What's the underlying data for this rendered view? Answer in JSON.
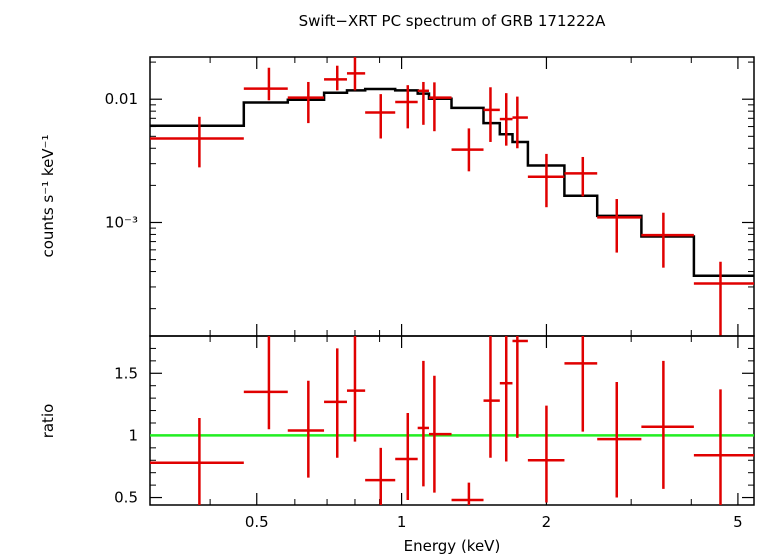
{
  "chart_data": [
    {
      "type": "scatter",
      "panel": "spectrum",
      "title": "Swift−XRT PC spectrum of GRB 171222A",
      "ylabel": "counts s⁻¹ keV⁻¹",
      "yscale": "log",
      "ylim": [
        0.00012,
        0.022
      ],
      "xscale": "log",
      "xlim": [
        0.3,
        5.4
      ],
      "ytick_labels": [
        "0.01",
        "10⁻³"
      ],
      "ytick_values": [
        0.01,
        0.001
      ],
      "data": {
        "x": [
          0.38,
          0.53,
          0.64,
          0.735,
          0.8,
          0.905,
          1.03,
          1.11,
          1.17,
          1.38,
          1.53,
          1.65,
          1.74,
          2.0,
          2.38,
          2.8,
          3.5,
          4.6
        ],
        "xlo": [
          0.3,
          0.47,
          0.58,
          0.69,
          0.77,
          0.84,
          0.97,
          1.08,
          1.14,
          1.27,
          1.48,
          1.6,
          1.7,
          1.83,
          2.18,
          2.55,
          3.15,
          4.05
        ],
        "xhi": [
          0.47,
          0.58,
          0.69,
          0.77,
          0.84,
          0.97,
          1.08,
          1.14,
          1.27,
          1.48,
          1.6,
          1.7,
          1.83,
          2.18,
          2.55,
          3.15,
          4.05,
          5.4
        ],
        "y": [
          0.0048,
          0.0122,
          0.0103,
          0.0145,
          0.0162,
          0.0078,
          0.0095,
          0.0117,
          0.0103,
          0.0039,
          0.0082,
          0.0069,
          0.0071,
          0.00235,
          0.0025,
          0.0011,
          0.00079,
          0.00032
        ],
        "ylo": [
          0.0028,
          0.0098,
          0.0064,
          0.0118,
          0.0118,
          0.0048,
          0.0058,
          0.0062,
          0.0055,
          0.0026,
          0.0045,
          0.0042,
          0.004,
          0.00133,
          0.00163,
          0.00057,
          0.00043,
          0.000118
        ],
        "yhi": [
          0.0072,
          0.018,
          0.0138,
          0.0187,
          0.022,
          0.011,
          0.013,
          0.0138,
          0.0137,
          0.0058,
          0.0125,
          0.0112,
          0.0105,
          0.0036,
          0.0034,
          0.00155,
          0.0012,
          0.00048
        ]
      },
      "model": {
        "edges": [
          0.3,
          0.47,
          0.58,
          0.69,
          0.77,
          0.84,
          0.97,
          1.08,
          1.14,
          1.27,
          1.48,
          1.6,
          1.7,
          1.83,
          2.18,
          2.55,
          3.15,
          4.05,
          5.4
        ],
        "values": [
          0.0061,
          0.0094,
          0.0099,
          0.0113,
          0.0118,
          0.0121,
          0.0118,
          0.0111,
          0.0101,
          0.0085,
          0.0064,
          0.0052,
          0.0045,
          0.0029,
          0.00165,
          0.00113,
          0.00077,
          0.00037
        ]
      },
      "colors": {
        "data": "#e00000",
        "model": "#000000"
      }
    },
    {
      "type": "scatter",
      "panel": "ratio",
      "ylabel": "ratio",
      "xlabel": "Energy (keV)",
      "xscale": "log",
      "xlim": [
        0.3,
        5.4
      ],
      "ylim": [
        0.44,
        1.8
      ],
      "ytick_labels": [
        "0.5",
        "1",
        "1.5"
      ],
      "ytick_values": [
        0.5,
        1,
        1.5
      ],
      "xtick_labels": [
        "0.5",
        "1",
        "2",
        "5"
      ],
      "xtick_values": [
        0.5,
        1,
        2,
        5
      ],
      "reference_line": 1,
      "data": {
        "x": [
          0.38,
          0.53,
          0.64,
          0.735,
          0.8,
          0.905,
          1.03,
          1.11,
          1.17,
          1.38,
          1.53,
          1.65,
          1.74,
          2.0,
          2.38,
          2.8,
          3.5,
          4.6
        ],
        "xlo": [
          0.3,
          0.47,
          0.58,
          0.69,
          0.77,
          0.84,
          0.97,
          1.08,
          1.14,
          1.27,
          1.48,
          1.6,
          1.7,
          1.83,
          2.18,
          2.55,
          3.15,
          4.05
        ],
        "xhi": [
          0.47,
          0.58,
          0.69,
          0.77,
          0.84,
          0.97,
          1.08,
          1.14,
          1.27,
          1.48,
          1.6,
          1.7,
          1.83,
          2.18,
          2.55,
          3.15,
          4.05,
          5.4
        ],
        "y": [
          0.78,
          1.35,
          1.04,
          1.27,
          1.36,
          0.64,
          0.81,
          1.06,
          1.01,
          0.48,
          1.28,
          1.42,
          1.76,
          0.8,
          1.58,
          0.97,
          1.07,
          0.84
        ],
        "ylo": [
          0.44,
          1.05,
          0.66,
          0.82,
          0.95,
          0.44,
          0.48,
          0.59,
          0.54,
          0.44,
          0.82,
          0.79,
          0.98,
          0.46,
          1.03,
          0.5,
          0.57,
          0.44
        ],
        "yhi": [
          1.14,
          1.8,
          1.44,
          1.7,
          1.8,
          0.9,
          1.18,
          1.6,
          1.48,
          0.62,
          1.8,
          1.8,
          1.8,
          1.24,
          1.8,
          1.43,
          1.6,
          1.37
        ]
      },
      "colors": {
        "data": "#e00000",
        "reference": "#22ee22"
      }
    }
  ]
}
